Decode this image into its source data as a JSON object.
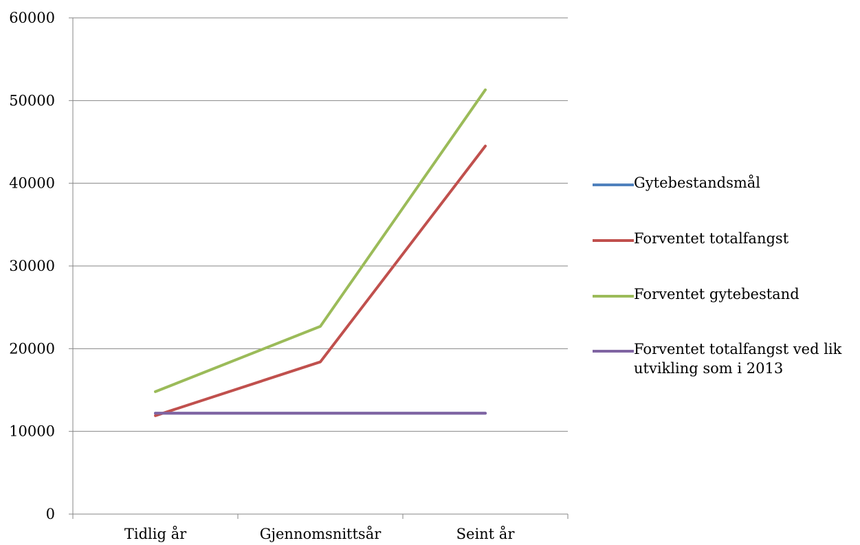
{
  "chart_data": {
    "type": "line",
    "categories": [
      "Tidlig år",
      "Gjennomsnittsår",
      "Seint år"
    ],
    "series": [
      {
        "name": "Gytebestandsmål",
        "color": "#4f81bd",
        "values": [
          12200,
          12200,
          12200
        ]
      },
      {
        "name": "Forventet totalfangst",
        "color": "#c0504d",
        "values": [
          11900,
          18400,
          44500
        ]
      },
      {
        "name": "Forventet gytebestand",
        "color": "#9bbb59",
        "values": [
          14800,
          22700,
          51300
        ]
      },
      {
        "name": "Forventet totalfangst ved lik utvikling som i 2013",
        "color": "#8064a2",
        "values": [
          12200,
          12200,
          12200
        ]
      }
    ],
    "ylim": [
      0,
      60000
    ],
    "yticks": [
      0,
      10000,
      20000,
      30000,
      40000,
      50000,
      60000
    ],
    "grid": true,
    "legend_position": "right",
    "title": "",
    "xlabel": "",
    "ylabel": ""
  }
}
